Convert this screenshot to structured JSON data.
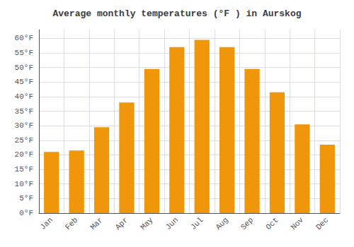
{
  "chart_data": {
    "type": "bar",
    "title": "Average monthly temperatures (°F ) in Aurskog",
    "categories": [
      "Jan",
      "Feb",
      "Mar",
      "Apr",
      "May",
      "Jun",
      "Jul",
      "Aug",
      "Sep",
      "Oct",
      "Nov",
      "Dec"
    ],
    "values": [
      21,
      21.5,
      29.5,
      38,
      49.5,
      57,
      59.5,
      57,
      49.5,
      41.5,
      30.5,
      23.5
    ],
    "color": "#F0960A",
    "ylim": [
      0,
      63
    ],
    "yticks": [
      {
        "value": 0,
        "label": "0°F"
      },
      {
        "value": 5,
        "label": "5°F"
      },
      {
        "value": 10,
        "label": "10°F"
      },
      {
        "value": 15,
        "label": "15°F"
      },
      {
        "value": 20,
        "label": "20°F"
      },
      {
        "value": 25,
        "label": "25°F"
      },
      {
        "value": 30,
        "label": "30°F"
      },
      {
        "value": 35,
        "label": "35°F"
      },
      {
        "value": 40,
        "label": "40°F"
      },
      {
        "value": 45,
        "label": "45°F"
      },
      {
        "value": 50,
        "label": "50°F"
      },
      {
        "value": 55,
        "label": "55°F"
      },
      {
        "value": 60,
        "label": "60°F"
      }
    ],
    "grid": true
  }
}
